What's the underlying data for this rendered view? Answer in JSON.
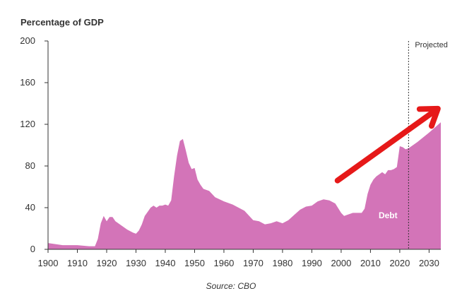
{
  "chart_data": {
    "type": "area",
    "title": "",
    "ylabel": "Percentage of GDP",
    "xlabel": "",
    "xlim": [
      1900,
      2034
    ],
    "ylim": [
      0,
      200
    ],
    "x_ticks": [
      1900,
      1910,
      1920,
      1930,
      1940,
      1950,
      1960,
      1970,
      1980,
      1990,
      2000,
      2010,
      2020,
      2030
    ],
    "y_ticks": [
      0,
      40,
      80,
      120,
      160,
      200
    ],
    "grid": false,
    "projection_start": 2023,
    "projection_label": "Projected",
    "series": [
      {
        "name": "Debt",
        "color": "#d374b8",
        "x": [
          1900,
          1905,
          1910,
          1914,
          1916,
          1917,
          1918,
          1919,
          1920,
          1921,
          1922,
          1923,
          1925,
          1927,
          1929,
          1930,
          1931,
          1932,
          1933,
          1934,
          1935,
          1936,
          1937,
          1938,
          1939,
          1940,
          1941,
          1942,
          1943,
          1944,
          1945,
          1946,
          1947,
          1948,
          1949,
          1950,
          1951,
          1952,
          1953,
          1955,
          1957,
          1960,
          1963,
          1965,
          1967,
          1970,
          1972,
          1974,
          1976,
          1978,
          1980,
          1982,
          1984,
          1986,
          1988,
          1990,
          1992,
          1994,
          1996,
          1998,
          2000,
          2001,
          2002,
          2004,
          2006,
          2007,
          2008,
          2009,
          2010,
          2011,
          2012,
          2013,
          2014,
          2015,
          2016,
          2017,
          2018,
          2019,
          2020,
          2021,
          2022,
          2023,
          2026,
          2030,
          2034
        ],
        "values": [
          6,
          4,
          4,
          3,
          3,
          10,
          25,
          32,
          27,
          31,
          31,
          27,
          23,
          19,
          16,
          15,
          18,
          24,
          32,
          36,
          40,
          42,
          40,
          42,
          42,
          43,
          42,
          47,
          70,
          90,
          104,
          106,
          95,
          83,
          77,
          78,
          67,
          62,
          58,
          56,
          50,
          46,
          43,
          40,
          37,
          28,
          27,
          24,
          25,
          27,
          25,
          28,
          33,
          38,
          41,
          42,
          46,
          48,
          47,
          44,
          35,
          32,
          33,
          35,
          35,
          35,
          39,
          53,
          62,
          67,
          70,
          72,
          74,
          72,
          76,
          76,
          77,
          79,
          99,
          98,
          96,
          97,
          103,
          112,
          122
        ]
      }
    ],
    "annotations": [
      {
        "text": "Debt",
        "x": 2016,
        "y": 30,
        "color": "#ffffff"
      }
    ],
    "arrow": {
      "color": "#e61919",
      "from": [
        1999,
        66
      ],
      "to": [
        2033,
        135
      ]
    }
  },
  "source": "Source: CBO"
}
